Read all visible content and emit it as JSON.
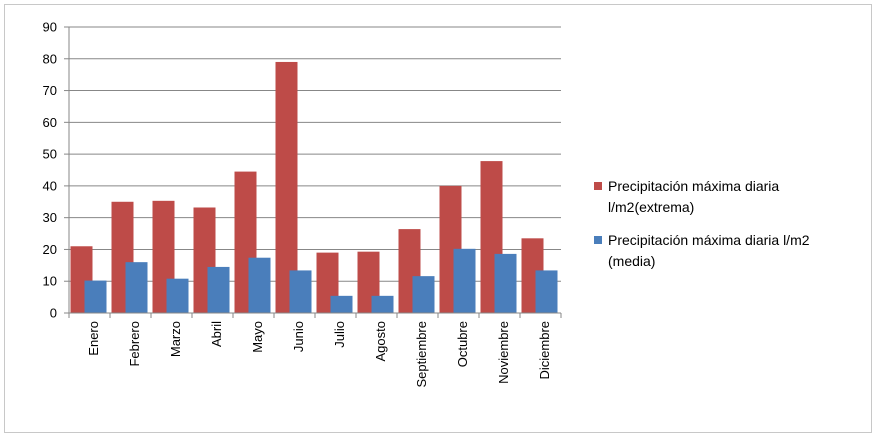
{
  "chart_data": {
    "type": "bar",
    "categories": [
      "Enero",
      "Febrero",
      "Marzo",
      "Abril",
      "Mayo",
      "Junio",
      "Julio",
      "Agosto",
      "Septiembre",
      "Octubre",
      "Noviembre",
      "Diciembre"
    ],
    "series": [
      {
        "name": "Precipitación máxima diaria l/m2(extrema)",
        "legend_lines": [
          "Precipitación máxima diaria",
          "l/m2(extrema)"
        ],
        "color": "#be4b48",
        "values": [
          21,
          35,
          35.3,
          33.2,
          44.5,
          79,
          19,
          19.3,
          26.4,
          40,
          47.8,
          23.5
        ]
      },
      {
        "name": "Precipitación máxima diaria l/m2 (media)",
        "legend_lines": [
          "Precipitación máxima diaria l/m2",
          "(media)"
        ],
        "color": "#4a7ebb",
        "values": [
          10.2,
          16,
          10.8,
          14.5,
          17.4,
          13.4,
          5.4,
          5.4,
          11.6,
          20.2,
          18.6,
          13.4
        ]
      }
    ],
    "y_ticks": [
      "0",
      "10",
      "20",
      "30",
      "40",
      "50",
      "60",
      "70",
      "80",
      "90"
    ],
    "ylim": [
      0,
      90
    ],
    "grid": true,
    "legend_position": "right",
    "title": "",
    "xlabel": "",
    "ylabel": ""
  }
}
